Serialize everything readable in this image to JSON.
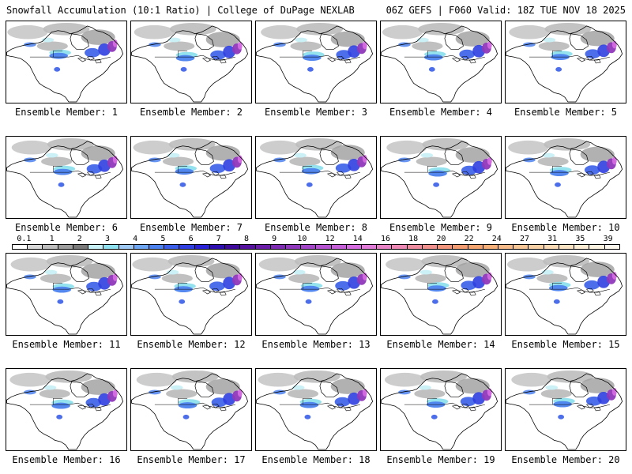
{
  "header": {
    "left": "Snowfall Accumulation (10:1 Ratio) | College of DuPage NEXLAB",
    "right": "06Z GEFS | F060 Valid: 18Z TUE NOV 18 2025"
  },
  "panels": [
    {
      "label": "Ensemble Member: 1"
    },
    {
      "label": "Ensemble Member: 2"
    },
    {
      "label": "Ensemble Member: 3"
    },
    {
      "label": "Ensemble Member: 4"
    },
    {
      "label": "Ensemble Member: 5"
    },
    {
      "label": "Ensemble Member: 6"
    },
    {
      "label": "Ensemble Member: 7"
    },
    {
      "label": "Ensemble Member: 8"
    },
    {
      "label": "Ensemble Member: 9"
    },
    {
      "label": "Ensemble Member: 10"
    },
    {
      "label": "Ensemble Member: 11"
    },
    {
      "label": "Ensemble Member: 12"
    },
    {
      "label": "Ensemble Member: 13"
    },
    {
      "label": "Ensemble Member: 14"
    },
    {
      "label": "Ensemble Member: 15"
    },
    {
      "label": "Ensemble Member: 16"
    },
    {
      "label": "Ensemble Member: 17"
    },
    {
      "label": "Ensemble Member: 18"
    },
    {
      "label": "Ensemble Member: 19"
    },
    {
      "label": "Ensemble Member: 20"
    }
  ],
  "colorbar": {
    "labels": [
      "0.1",
      "1",
      "2",
      "3",
      "4",
      "5",
      "6",
      "7",
      "8",
      "9",
      "10",
      "12",
      "14",
      "16",
      "18",
      "20",
      "22",
      "24",
      "27",
      "31",
      "35",
      "39"
    ],
    "colors": [
      "#ffffff",
      "#d9d9d9",
      "#bdbdbd",
      "#9e9e9e",
      "#7a7a7a",
      "#c8f0f7",
      "#8fe0ee",
      "#9ec9f5",
      "#6fa6f2",
      "#4c82ee",
      "#3a5ee8",
      "#2f3fe0",
      "#2a22d6",
      "#2d0fb0",
      "#3e0a9c",
      "#55129e",
      "#6a1ea8",
      "#7d2bb2",
      "#9038bc",
      "#a245c6",
      "#b452cf",
      "#c55fd8",
      "#d56ce0",
      "#e07bd7",
      "#e884c6",
      "#ec88b3",
      "#ee8ca0",
      "#f0908d",
      "#f2957d",
      "#f39c72",
      "#f4a56f",
      "#f5b07a",
      "#f6bb88",
      "#f7c696",
      "#f8d0a5",
      "#f9dab4",
      "#fae3c3",
      "#fbecd3",
      "#fcf3e0",
      "#fdf8ee"
    ]
  }
}
